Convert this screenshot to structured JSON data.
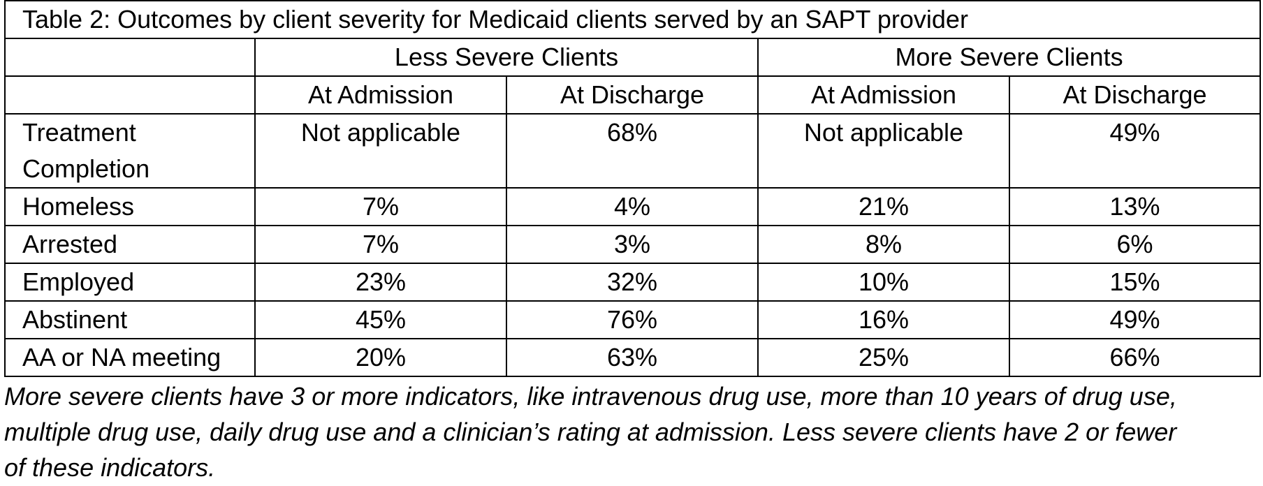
{
  "table": {
    "title": "Table 2: Outcomes by client severity for Medicaid clients served by an SAPT provider",
    "groups": [
      "Less Severe Clients",
      "More Severe Clients"
    ],
    "subheaders": [
      "At Admission",
      "At Discharge",
      "At Admission",
      "At Discharge"
    ],
    "rows": [
      {
        "label": "Treatment Completion",
        "values": [
          "Not applicable",
          "68%",
          "Not applicable",
          "49%"
        ]
      },
      {
        "label": "Homeless",
        "values": [
          "7%",
          "4%",
          "21%",
          "13%"
        ]
      },
      {
        "label": "Arrested",
        "values": [
          "7%",
          "3%",
          "8%",
          "6%"
        ]
      },
      {
        "label": "Employed",
        "values": [
          "23%",
          "32%",
          "10%",
          "15%"
        ]
      },
      {
        "label": "Abstinent",
        "values": [
          "45%",
          "76%",
          "16%",
          "49%"
        ]
      },
      {
        "label": "AA or NA meeting",
        "values": [
          "20%",
          "63%",
          "25%",
          "66%"
        ]
      }
    ]
  },
  "footnote": {
    "lines": [
      "More severe clients have 3 or more indicators, like intravenous drug use, more than 10 years of drug use,",
      "multiple drug use, daily drug use and a clinician’s rating at admission. Less severe clients have 2 or fewer",
      "of these indicators."
    ]
  }
}
